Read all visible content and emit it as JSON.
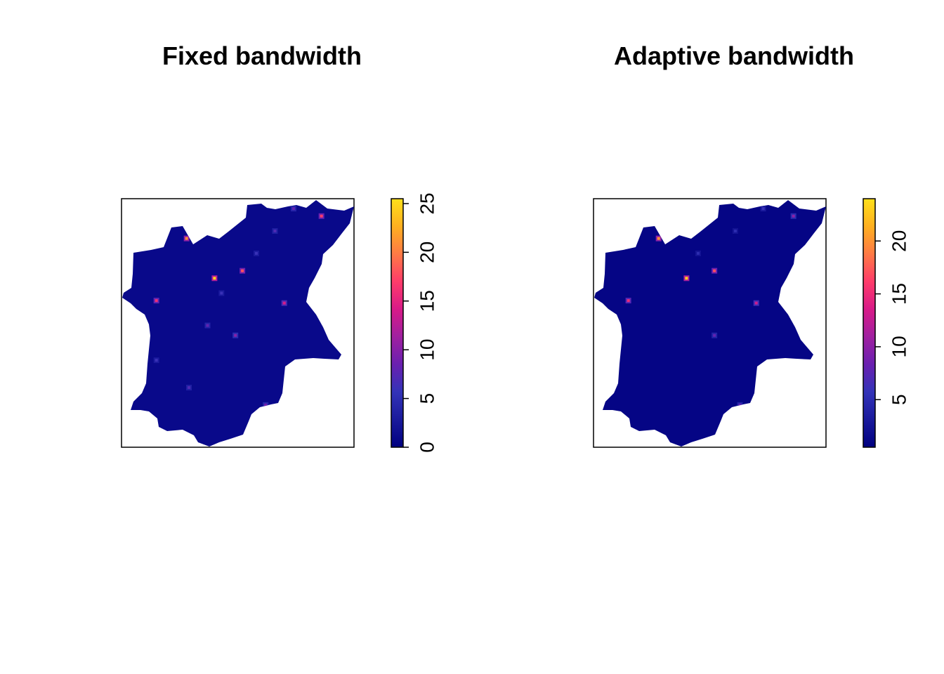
{
  "chart_data": [
    {
      "type": "heatmap",
      "title": "Fixed bandwidth",
      "xlabel": "",
      "ylabel": "",
      "colorbar": {
        "min": 0,
        "max": 25.5,
        "ticks": [
          0,
          5,
          10,
          15,
          20,
          25
        ],
        "tick_labels": [
          "0",
          "5",
          "10",
          "15",
          "20",
          "25"
        ]
      },
      "colormap": [
        "#000080",
        "#1a1a9c",
        "#3333b8",
        "#6a20b0",
        "#a020a0",
        "#d81b88",
        "#ff3c6a",
        "#ff7a45",
        "#ffb020",
        "#ffe01a"
      ],
      "background_value": 1,
      "hotspots": [
        {
          "x": 0.28,
          "y": 0.84,
          "value": 21
        },
        {
          "x": 0.4,
          "y": 0.68,
          "value": 25
        },
        {
          "x": 0.52,
          "y": 0.71,
          "value": 18
        },
        {
          "x": 0.15,
          "y": 0.59,
          "value": 16
        },
        {
          "x": 0.7,
          "y": 0.58,
          "value": 14
        },
        {
          "x": 0.86,
          "y": 0.93,
          "value": 17
        },
        {
          "x": 0.49,
          "y": 0.45,
          "value": 10
        },
        {
          "x": 0.37,
          "y": 0.49,
          "value": 8
        },
        {
          "x": 0.66,
          "y": 0.87,
          "value": 7
        },
        {
          "x": 0.62,
          "y": 0.17,
          "value": 9
        },
        {
          "x": 0.15,
          "y": 0.35,
          "value": 6
        },
        {
          "x": 0.29,
          "y": 0.24,
          "value": 7
        },
        {
          "x": 0.58,
          "y": 0.78,
          "value": 6
        },
        {
          "x": 0.74,
          "y": 0.96,
          "value": 8
        },
        {
          "x": 0.43,
          "y": 0.62,
          "value": 6
        }
      ]
    },
    {
      "type": "heatmap",
      "title": "Adaptive bandwidth",
      "xlabel": "",
      "ylabel": "",
      "colorbar": {
        "min": 0.5,
        "max": 24,
        "ticks": [
          5,
          10,
          15,
          20
        ],
        "tick_labels": [
          "5",
          "10",
          "15",
          "20"
        ]
      },
      "colormap": [
        "#000080",
        "#1a1a9c",
        "#3333b8",
        "#6a20b0",
        "#a020a0",
        "#d81b88",
        "#ff3c6a",
        "#ff7a45",
        "#ffb020",
        "#ffe01a"
      ],
      "background_value": 1,
      "hotspots": [
        {
          "x": 0.28,
          "y": 0.84,
          "value": 20
        },
        {
          "x": 0.4,
          "y": 0.68,
          "value": 23
        },
        {
          "x": 0.52,
          "y": 0.71,
          "value": 17
        },
        {
          "x": 0.15,
          "y": 0.59,
          "value": 15
        },
        {
          "x": 0.7,
          "y": 0.58,
          "value": 13
        },
        {
          "x": 0.86,
          "y": 0.93,
          "value": 10
        },
        {
          "x": 0.52,
          "y": 0.45,
          "value": 8
        },
        {
          "x": 0.63,
          "y": 0.17,
          "value": 8
        },
        {
          "x": 0.45,
          "y": 0.78,
          "value": 5
        },
        {
          "x": 0.73,
          "y": 0.96,
          "value": 6
        },
        {
          "x": 0.61,
          "y": 0.87,
          "value": 5
        }
      ]
    }
  ]
}
